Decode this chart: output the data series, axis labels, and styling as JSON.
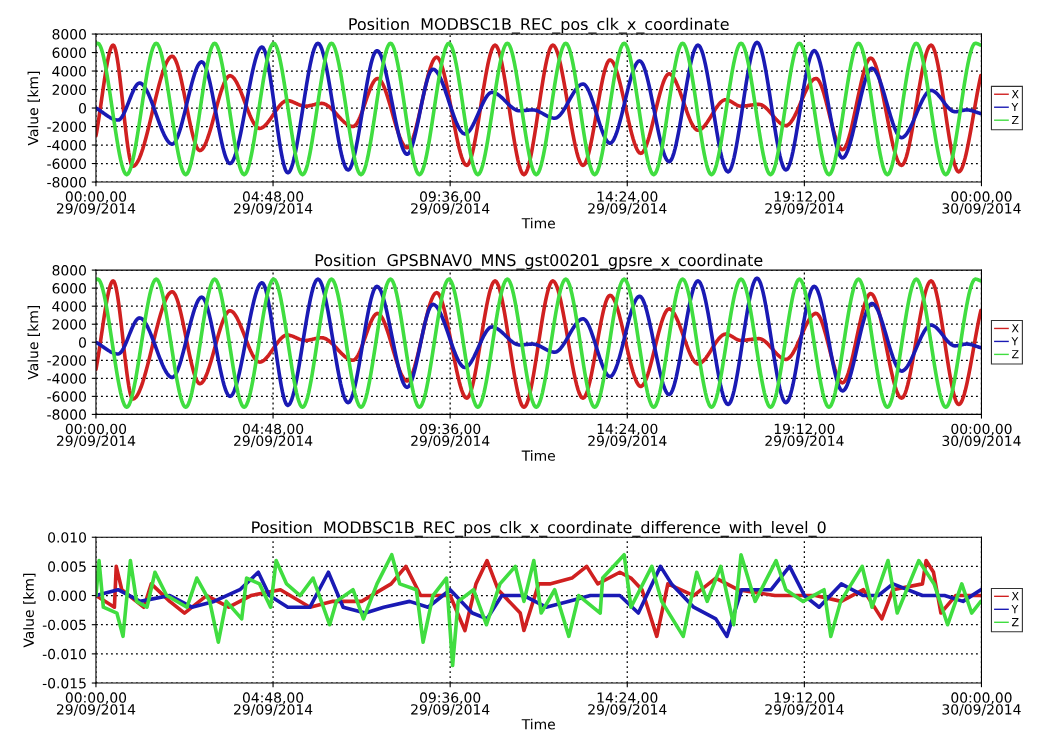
{
  "chart_data": [
    {
      "type": "line",
      "title": "Position  MODBSC1B_REC_pos_clk_x_coordinate",
      "xlabel": "Time",
      "ylabel": "Value [km]",
      "xlim": [
        "2014-09-29T00:00",
        "2014-09-30T00:00"
      ],
      "xticks": [
        {
          "value": "2014-09-29T00:00",
          "label": "00:00,00\n29/09/2014"
        },
        {
          "value": "2014-09-29T04:48",
          "label": "04:48,00\n29/09/2014"
        },
        {
          "value": "2014-09-29T09:36",
          "label": "09:36,00\n29/09/2014"
        },
        {
          "value": "2014-09-29T14:24",
          "label": "14:24,00\n29/09/2014"
        },
        {
          "value": "2014-09-29T19:12",
          "label": "19:12,00\n29/09/2014"
        },
        {
          "value": "2014-09-30T00:00",
          "label": "00:00,00\n30/09/2014"
        }
      ],
      "ylim": [
        -8000,
        8000
      ],
      "yticks": [
        -8000,
        -6000,
        -4000,
        -2000,
        0,
        2000,
        4000,
        6000,
        8000
      ],
      "grid": true,
      "legend": "right",
      "series": [
        {
          "name": "X",
          "color": "#d02020",
          "x": [
            "2014-09-29T00:00",
            "2014-09-29T00:28",
            "2014-09-29T01:00",
            "2014-09-29T02:04",
            "2014-09-29T02:49",
            "2014-09-29T03:38",
            "2014-09-29T04:26",
            "2014-09-29T05:11",
            "2014-09-29T05:40",
            "2014-09-29T06:07",
            "2014-09-29T06:58",
            "2014-09-29T07:38",
            "2014-09-29T08:26",
            "2014-09-29T09:14",
            "2014-09-29T10:03",
            "2014-09-29T10:49",
            "2014-09-29T11:36",
            "2014-09-29T12:23",
            "2014-09-29T13:12",
            "2014-09-29T13:56",
            "2014-09-29T14:46",
            "2014-09-29T15:32",
            "2014-09-29T16:19",
            "2014-09-29T17:04",
            "2014-09-29T17:29",
            "2014-09-29T17:58",
            "2014-09-29T18:42",
            "2014-09-29T19:31",
            "2014-09-29T20:14",
            "2014-09-29T21:00",
            "2014-09-29T21:50",
            "2014-09-29T22:38",
            "2014-09-29T23:23",
            "2014-09-29T23:59"
          ],
          "values": [
            -3000,
            6800,
            -6300,
            5600,
            -4600,
            3500,
            -2200,
            800,
            200,
            500,
            -2000,
            3200,
            -4300,
            5500,
            -6200,
            6800,
            -7200,
            6800,
            -6200,
            5200,
            -4900,
            3700,
            -2400,
            900,
            200,
            400,
            -1900,
            3200,
            -4500,
            5400,
            -6200,
            6800,
            -6900,
            3500
          ]
        },
        {
          "name": "Y",
          "color": "#1a1ab4",
          "x": [
            "2014-09-29T00:00",
            "2014-09-29T00:36",
            "2014-09-29T01:11",
            "2014-09-29T02:04",
            "2014-09-29T02:52",
            "2014-09-29T03:38",
            "2014-09-29T04:30",
            "2014-09-29T05:12",
            "2014-09-29T06:01",
            "2014-09-29T06:50",
            "2014-09-29T07:37",
            "2014-09-29T08:26",
            "2014-09-29T09:08",
            "2014-09-29T10:00",
            "2014-09-29T10:44",
            "2014-09-29T11:29",
            "2014-09-29T11:50",
            "2014-09-29T12:26",
            "2014-09-29T13:12",
            "2014-09-29T13:56",
            "2014-09-29T14:44",
            "2014-09-29T15:32",
            "2014-09-29T16:19",
            "2014-09-29T17:08",
            "2014-09-29T17:55",
            "2014-09-29T18:42",
            "2014-09-29T19:28",
            "2014-09-29T20:14",
            "2014-09-29T21:02",
            "2014-09-29T21:50",
            "2014-09-29T22:38",
            "2014-09-29T23:17",
            "2014-09-29T23:36",
            "2014-09-29T23:59"
          ],
          "values": [
            0,
            -1300,
            2700,
            -3900,
            5000,
            -6000,
            6600,
            -7000,
            7000,
            -6700,
            6200,
            -5000,
            4200,
            -2800,
            1700,
            -300,
            -200,
            -1100,
            2600,
            -3800,
            5100,
            -5800,
            6800,
            -6900,
            7100,
            -6700,
            6200,
            -5400,
            4300,
            -3200,
            1900,
            -400,
            -200,
            -600
          ]
        },
        {
          "name": "Z",
          "color": "#40dd40",
          "x": [
            "2014-09-29T00:00",
            "2014-09-29T00:03",
            "2014-09-29T00:50",
            "2014-09-29T01:38",
            "2014-09-29T02:26",
            "2014-09-29T03:13",
            "2014-09-29T04:01",
            "2014-09-29T04:49",
            "2014-09-29T05:36",
            "2014-09-29T06:23",
            "2014-09-29T07:11",
            "2014-09-29T07:59",
            "2014-09-29T08:46",
            "2014-09-29T09:34",
            "2014-09-29T10:21",
            "2014-09-29T11:09",
            "2014-09-29T11:56",
            "2014-09-29T12:44",
            "2014-09-29T13:31",
            "2014-09-29T14:19",
            "2014-09-29T15:07",
            "2014-09-29T15:54",
            "2014-09-29T16:41",
            "2014-09-29T17:29",
            "2014-09-29T18:17",
            "2014-09-29T19:04",
            "2014-09-29T19:52",
            "2014-09-29T20:40",
            "2014-09-29T21:27",
            "2014-09-29T22:14",
            "2014-09-29T23:02",
            "2014-09-29T23:50",
            "2014-09-29T23:59"
          ],
          "values": [
            6900,
            7000,
            -7200,
            7000,
            -7200,
            7000,
            -7200,
            7000,
            -7200,
            7000,
            -7200,
            7000,
            -7200,
            7000,
            -7200,
            7000,
            -7200,
            7000,
            -7200,
            7000,
            -7200,
            7000,
            -7200,
            7000,
            -7200,
            7000,
            -7200,
            7000,
            -7200,
            7000,
            -7200,
            7000,
            6800
          ]
        }
      ]
    },
    {
      "type": "line",
      "title": "Position  GPSBNAV0_MNS_gst00201_gpsre_x_coordinate",
      "xlabel": "Time",
      "ylabel": "Value [km]",
      "xlim": [
        "2014-09-29T00:00",
        "2014-09-30T00:00"
      ],
      "xticks": [
        {
          "value": "2014-09-29T00:00",
          "label": "00:00,00\n29/09/2014"
        },
        {
          "value": "2014-09-29T04:48",
          "label": "04:48,00\n29/09/2014"
        },
        {
          "value": "2014-09-29T09:36",
          "label": "09:36,00\n29/09/2014"
        },
        {
          "value": "2014-09-29T14:24",
          "label": "14:24,00\n29/09/2014"
        },
        {
          "value": "2014-09-29T19:12",
          "label": "19:12,00\n29/09/2014"
        },
        {
          "value": "2014-09-30T00:00",
          "label": "00:00,00\n30/09/2014"
        }
      ],
      "ylim": [
        -8000,
        8000
      ],
      "yticks": [
        -8000,
        -6000,
        -4000,
        -2000,
        0,
        2000,
        4000,
        6000,
        8000
      ],
      "grid": true,
      "legend": "right",
      "series": [
        {
          "name": "X",
          "color": "#d02020",
          "x": [
            "2014-09-29T00:00",
            "2014-09-29T00:28",
            "2014-09-29T01:00",
            "2014-09-29T02:04",
            "2014-09-29T02:49",
            "2014-09-29T03:38",
            "2014-09-29T04:26",
            "2014-09-29T05:11",
            "2014-09-29T05:40",
            "2014-09-29T06:07",
            "2014-09-29T06:58",
            "2014-09-29T07:38",
            "2014-09-29T08:26",
            "2014-09-29T09:14",
            "2014-09-29T10:03",
            "2014-09-29T10:49",
            "2014-09-29T11:36",
            "2014-09-29T12:23",
            "2014-09-29T13:12",
            "2014-09-29T13:56",
            "2014-09-29T14:46",
            "2014-09-29T15:32",
            "2014-09-29T16:19",
            "2014-09-29T17:04",
            "2014-09-29T17:29",
            "2014-09-29T17:58",
            "2014-09-29T18:42",
            "2014-09-29T19:31",
            "2014-09-29T20:14",
            "2014-09-29T21:00",
            "2014-09-29T21:50",
            "2014-09-29T22:38",
            "2014-09-29T23:23",
            "2014-09-29T23:59"
          ],
          "values": [
            -3000,
            6800,
            -6300,
            5600,
            -4600,
            3500,
            -2200,
            800,
            200,
            500,
            -2000,
            3200,
            -4300,
            5500,
            -6200,
            6800,
            -7200,
            6800,
            -6200,
            5200,
            -4900,
            3700,
            -2400,
            900,
            200,
            400,
            -1900,
            3200,
            -4500,
            5400,
            -6200,
            6800,
            -6900,
            3500
          ]
        },
        {
          "name": "Y",
          "color": "#1a1ab4",
          "x": [
            "2014-09-29T00:00",
            "2014-09-29T00:36",
            "2014-09-29T01:11",
            "2014-09-29T02:04",
            "2014-09-29T02:52",
            "2014-09-29T03:38",
            "2014-09-29T04:30",
            "2014-09-29T05:12",
            "2014-09-29T06:01",
            "2014-09-29T06:50",
            "2014-09-29T07:37",
            "2014-09-29T08:26",
            "2014-09-29T09:08",
            "2014-09-29T10:00",
            "2014-09-29T10:44",
            "2014-09-29T11:29",
            "2014-09-29T11:50",
            "2014-09-29T12:26",
            "2014-09-29T13:12",
            "2014-09-29T13:56",
            "2014-09-29T14:44",
            "2014-09-29T15:32",
            "2014-09-29T16:19",
            "2014-09-29T17:08",
            "2014-09-29T17:55",
            "2014-09-29T18:42",
            "2014-09-29T19:28",
            "2014-09-29T20:14",
            "2014-09-29T21:02",
            "2014-09-29T21:50",
            "2014-09-29T22:38",
            "2014-09-29T23:17",
            "2014-09-29T23:36",
            "2014-09-29T23:59"
          ],
          "values": [
            0,
            -1300,
            2700,
            -3900,
            5000,
            -6000,
            6600,
            -7000,
            7000,
            -6700,
            6200,
            -5000,
            4200,
            -2800,
            1700,
            -300,
            -200,
            -1100,
            2600,
            -3800,
            5100,
            -5800,
            6800,
            -6900,
            7100,
            -6700,
            6200,
            -5400,
            4300,
            -3200,
            1900,
            -400,
            -200,
            -600
          ]
        },
        {
          "name": "Z",
          "color": "#40dd40",
          "x": [
            "2014-09-29T00:00",
            "2014-09-29T00:03",
            "2014-09-29T00:50",
            "2014-09-29T01:38",
            "2014-09-29T02:26",
            "2014-09-29T03:13",
            "2014-09-29T04:01",
            "2014-09-29T04:49",
            "2014-09-29T05:36",
            "2014-09-29T06:23",
            "2014-09-29T07:11",
            "2014-09-29T07:59",
            "2014-09-29T08:46",
            "2014-09-29T09:34",
            "2014-09-29T10:21",
            "2014-09-29T11:09",
            "2014-09-29T11:56",
            "2014-09-29T12:44",
            "2014-09-29T13:31",
            "2014-09-29T14:19",
            "2014-09-29T15:07",
            "2014-09-29T15:54",
            "2014-09-29T16:41",
            "2014-09-29T17:29",
            "2014-09-29T18:17",
            "2014-09-29T19:04",
            "2014-09-29T19:52",
            "2014-09-29T20:40",
            "2014-09-29T21:27",
            "2014-09-29T22:14",
            "2014-09-29T23:02",
            "2014-09-29T23:50",
            "2014-09-29T23:59"
          ],
          "values": [
            6900,
            7000,
            -7200,
            7000,
            -7200,
            7000,
            -7200,
            7000,
            -7200,
            7000,
            -7200,
            7000,
            -7200,
            7000,
            -7200,
            7000,
            -7200,
            7000,
            -7200,
            7000,
            -7200,
            7000,
            -7200,
            7000,
            -7200,
            7000,
            -7200,
            7000,
            -7200,
            7000,
            -7200,
            7000,
            6800
          ]
        }
      ]
    },
    {
      "type": "line",
      "title": "Position  MODBSC1B_REC_pos_clk_x_coordinate_difference_with_level_0",
      "xlabel": "Time",
      "ylabel": "Value [km]",
      "xlim": [
        "2014-09-29T00:00",
        "2014-09-30T00:00"
      ],
      "xticks": [
        {
          "value": "2014-09-29T00:00",
          "label": "00:00,00\n29/09/2014"
        },
        {
          "value": "2014-09-29T04:48",
          "label": "04:48,00\n29/09/2014"
        },
        {
          "value": "2014-09-29T09:36",
          "label": "09:36,00\n29/09/2014"
        },
        {
          "value": "2014-09-29T14:24",
          "label": "14:24,00\n29/09/2014"
        },
        {
          "value": "2014-09-29T19:12",
          "label": "19:12,00\n29/09/2014"
        },
        {
          "value": "2014-09-30T00:00",
          "label": "00:00,00\n30/09/2014"
        }
      ],
      "ylim": [
        -0.015,
        0.01
      ],
      "yticks": [
        {
          "value": -0.015,
          "label": "-0.015"
        },
        {
          "value": -0.01,
          "label": "-0.010"
        },
        {
          "value": -0.005,
          "label": "-0.005"
        },
        {
          "value": 0,
          "label": "0.000"
        },
        {
          "value": 0.005,
          "label": "0.005"
        },
        {
          "value": 0.01,
          "label": "0.010"
        }
      ],
      "grid": true,
      "legend": "right",
      "series": [
        {
          "name": "X",
          "color": "#d02020",
          "x": [
            "2014-09-29T00:00",
            "2014-09-29T00:30",
            "2014-09-29T00:33",
            "2014-09-29T00:42",
            "2014-09-29T01:18",
            "2014-09-29T01:30",
            "2014-09-29T02:00",
            "2014-09-29T02:24",
            "2014-09-29T03:00",
            "2014-09-29T03:36",
            "2014-09-29T04:12",
            "2014-09-29T05:00",
            "2014-09-29T05:48",
            "2014-09-29T06:24",
            "2014-09-29T07:12",
            "2014-09-29T08:00",
            "2014-09-29T08:24",
            "2014-09-29T08:48",
            "2014-09-29T09:36",
            "2014-09-29T10:00",
            "2014-09-29T10:18",
            "2014-09-29T10:36",
            "2014-09-29T10:54",
            "2014-09-29T11:12",
            "2014-09-29T11:30",
            "2014-09-29T11:36",
            "2014-09-29T12:00",
            "2014-09-29T12:18",
            "2014-09-29T12:54",
            "2014-09-29T13:18",
            "2014-09-29T13:36",
            "2014-09-29T14:12",
            "2014-09-29T14:30",
            "2014-09-29T14:48",
            "2014-09-29T15:12",
            "2014-09-29T15:30",
            "2014-09-29T16:12",
            "2014-09-29T16:48",
            "2014-09-29T17:24",
            "2014-09-29T18:24",
            "2014-09-29T19:30",
            "2014-09-29T20:12",
            "2014-09-29T20:48",
            "2014-09-29T21:18",
            "2014-09-29T21:36",
            "2014-09-29T22:24",
            "2014-09-29T22:30",
            "2014-09-29T22:42",
            "2014-09-29T22:54",
            "2014-09-29T23:18",
            "2014-09-29T23:59"
          ],
          "values": [
            0.0,
            -0.002,
            0.005,
            0.001,
            -0.002,
            0.002,
            -0.001,
            -0.003,
            0.0,
            -0.002,
            0.0,
            0.001,
            -0.002,
            -0.001,
            -0.001,
            0.002,
            0.005,
            0.0,
            0.0,
            -0.006,
            0.002,
            0.006,
            0.001,
            -0.001,
            -0.003,
            -0.006,
            0.002,
            0.002,
            0.003,
            0.005,
            0.002,
            0.004,
            0.003,
            0.001,
            -0.007,
            0.002,
            0.0,
            0.003,
            0.001,
            0.0,
            0.0,
            -0.001,
            0.001,
            -0.004,
            0.001,
            0.002,
            0.006,
            0.004,
            -0.003,
            0.0,
            0.0
          ]
        },
        {
          "name": "Y",
          "color": "#1a1ab4",
          "x": [
            "2014-09-29T00:00",
            "2014-09-29T00:36",
            "2014-09-29T01:12",
            "2014-09-29T02:00",
            "2014-09-29T02:36",
            "2014-09-29T03:12",
            "2014-09-29T03:54",
            "2014-09-29T04:24",
            "2014-09-29T04:42",
            "2014-09-29T05:12",
            "2014-09-29T05:48",
            "2014-09-29T06:18",
            "2014-09-29T06:42",
            "2014-09-29T07:18",
            "2014-09-29T07:48",
            "2014-09-29T08:30",
            "2014-09-29T09:00",
            "2014-09-29T09:36",
            "2014-09-29T10:12",
            "2014-09-29T10:36",
            "2014-09-29T11:00",
            "2014-09-29T11:36",
            "2014-09-29T12:12",
            "2014-09-29T12:48",
            "2014-09-29T13:24",
            "2014-09-29T14:12",
            "2014-09-29T14:42",
            "2014-09-29T15:18",
            "2014-09-29T15:36",
            "2014-09-29T16:12",
            "2014-09-29T16:48",
            "2014-09-29T17:06",
            "2014-09-29T17:30",
            "2014-09-29T18:18",
            "2014-09-29T18:48",
            "2014-09-29T19:12",
            "2014-09-29T19:36",
            "2014-09-29T20:12",
            "2014-09-29T20:48",
            "2014-09-29T21:12",
            "2014-09-29T21:36",
            "2014-09-29T22:24",
            "2014-09-29T23:00",
            "2014-09-29T23:30",
            "2014-09-29T23:59"
          ],
          "values": [
            0.0,
            0.001,
            -0.001,
            0.0,
            -0.002,
            -0.001,
            0.001,
            0.004,
            0.0,
            -0.002,
            -0.002,
            0.004,
            -0.002,
            -0.003,
            -0.002,
            -0.001,
            -0.002,
            0.001,
            -0.003,
            -0.004,
            0.0,
            0.0,
            -0.002,
            -0.001,
            0.0,
            0.0,
            -0.003,
            0.005,
            0.002,
            -0.002,
            -0.004,
            -0.007,
            0.001,
            0.001,
            0.005,
            0.0,
            -0.002,
            0.002,
            0.0,
            0.0,
            0.002,
            0.0,
            0.0,
            -0.001,
            0.001
          ]
        },
        {
          "name": "Z",
          "color": "#40dd40",
          "x": [
            "2014-09-29T00:00",
            "2014-09-29T00:05",
            "2014-09-29T00:12",
            "2014-09-29T00:34",
            "2014-09-29T00:44",
            "2014-09-29T00:56",
            "2014-09-29T01:06",
            "2014-09-29T01:23",
            "2014-09-29T01:36",
            "2014-09-29T01:55",
            "2014-09-29T02:28",
            "2014-09-29T02:44",
            "2014-09-29T03:05",
            "2014-09-29T03:19",
            "2014-09-29T03:32",
            "2014-09-29T03:57",
            "2014-09-29T04:05",
            "2014-09-29T04:26",
            "2014-09-29T04:44",
            "2014-09-29T04:53",
            "2014-09-29T05:10",
            "2014-09-29T05:32",
            "2014-09-29T05:53",
            "2014-09-29T06:20",
            "2014-09-29T06:31",
            "2014-09-29T06:58",
            "2014-09-29T07:15",
            "2014-09-29T07:37",
            "2014-09-29T08:01",
            "2014-09-29T08:14",
            "2014-09-29T08:41",
            "2014-09-29T08:52",
            "2014-09-29T09:08",
            "2014-09-29T09:30",
            "2014-09-29T09:40",
            "2014-09-29T09:49",
            "2014-09-29T10:14",
            "2014-09-29T10:35",
            "2014-09-29T10:57",
            "2014-09-29T11:22",
            "2014-09-29T11:36",
            "2014-09-29T11:52",
            "2014-09-29T12:04",
            "2014-09-29T12:26",
            "2014-09-29T12:49",
            "2014-09-29T13:05",
            "2014-09-29T13:40",
            "2014-09-29T13:44",
            "2014-09-29T14:19",
            "2014-09-29T14:30",
            "2014-09-29T15:04",
            "2014-09-29T15:20",
            "2014-09-29T15:55",
            "2014-09-29T16:17",
            "2014-09-29T16:34",
            "2014-09-29T16:56",
            "2014-09-29T17:17",
            "2014-09-29T17:29",
            "2014-09-29T17:52",
            "2014-09-29T18:26",
            "2014-09-29T18:42",
            "2014-09-29T19:10",
            "2014-09-29T19:44",
            "2014-09-29T19:55",
            "2014-09-29T20:11",
            "2014-09-29T20:46",
            "2014-09-29T21:02",
            "2014-09-29T21:28",
            "2014-09-29T21:43",
            "2014-09-29T22:18",
            "2014-09-29T22:43",
            "2014-09-29T23:05",
            "2014-09-29T23:28",
            "2014-09-29T23:44",
            "2014-09-29T23:59"
          ],
          "values": [
            0.0,
            0.006,
            -0.002,
            -0.003,
            -0.007,
            0.006,
            -0.001,
            -0.002,
            0.004,
            0.0,
            -0.002,
            0.003,
            -0.001,
            -0.008,
            -0.001,
            -0.004,
            0.003,
            0.002,
            -0.002,
            0.006,
            0.002,
            0.0,
            0.003,
            -0.005,
            -0.001,
            0.001,
            -0.004,
            0.002,
            0.007,
            0.002,
            0.001,
            -0.008,
            0.0,
            0.003,
            -0.012,
            -0.001,
            0.001,
            -0.005,
            0.002,
            0.005,
            -0.001,
            0.006,
            -0.003,
            0.001,
            -0.007,
            0.0,
            -0.003,
            0.003,
            0.007,
            -0.002,
            0.005,
            -0.001,
            -0.007,
            0.004,
            -0.001,
            0.005,
            -0.005,
            0.007,
            -0.001,
            0.006,
            0.001,
            -0.001,
            0.001,
            -0.007,
            -0.001,
            0.005,
            -0.002,
            0.006,
            -0.003,
            0.006,
            0.002,
            -0.005,
            0.002,
            -0.003,
            -0.001
          ]
        }
      ]
    }
  ]
}
